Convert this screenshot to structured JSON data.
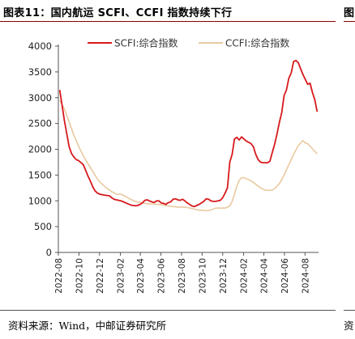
{
  "figure": {
    "title": "图表11：国内航运 SCFI、CCFI 指数持续下行",
    "adjacent_title_fragment": "图",
    "source": "资料来源：Wind，中邮证券研究所",
    "adjacent_source_fragment": "资"
  },
  "colors": {
    "scfi": "#d7191c",
    "ccfi": "#e9c9a0",
    "rule": "#8a0000",
    "axis": "#555555"
  },
  "chart_data": {
    "type": "line",
    "legend_position": "top",
    "grid": false,
    "ylim": [
      0,
      4000
    ],
    "y_ticks": [
      "0",
      "500",
      "1000",
      "1500",
      "2000",
      "2500",
      "3000",
      "3500",
      "4000"
    ],
    "x_ticks": [
      "2022-08",
      "2022-10",
      "2022-12",
      "2023-02",
      "2023-04",
      "2023-06",
      "2023-08",
      "2023-10",
      "2023-12",
      "2024-02",
      "2024-04",
      "2024-06",
      "2024-08"
    ],
    "series": [
      {
        "name": "SCFI:综合指数",
        "color": "#d7191c",
        "points": [
          [
            "2022-08-05",
            3150
          ],
          [
            "2022-08-12",
            2850
          ],
          [
            "2022-08-19",
            2550
          ],
          [
            "2022-08-26",
            2300
          ],
          [
            "2022-09-02",
            2050
          ],
          [
            "2022-09-09",
            1920
          ],
          [
            "2022-09-16",
            1850
          ],
          [
            "2022-09-23",
            1800
          ],
          [
            "2022-09-30",
            1780
          ],
          [
            "2022-10-14",
            1700
          ],
          [
            "2022-10-21",
            1590
          ],
          [
            "2022-10-28",
            1480
          ],
          [
            "2022-11-04",
            1380
          ],
          [
            "2022-11-11",
            1270
          ],
          [
            "2022-11-18",
            1190
          ],
          [
            "2022-11-25",
            1150
          ],
          [
            "2022-12-02",
            1130
          ],
          [
            "2022-12-09",
            1120
          ],
          [
            "2022-12-16",
            1110
          ],
          [
            "2022-12-23",
            1105
          ],
          [
            "2022-12-30",
            1100
          ],
          [
            "2023-01-06",
            1060
          ],
          [
            "2023-01-13",
            1030
          ],
          [
            "2023-01-20",
            1020
          ],
          [
            "2023-02-03",
            1000
          ],
          [
            "2023-02-10",
            980
          ],
          [
            "2023-02-17",
            960
          ],
          [
            "2023-02-24",
            940
          ],
          [
            "2023-03-03",
            920
          ],
          [
            "2023-03-10",
            910
          ],
          [
            "2023-03-17",
            905
          ],
          [
            "2023-03-24",
            910
          ],
          [
            "2023-03-31",
            930
          ],
          [
            "2023-04-07",
            960
          ],
          [
            "2023-04-14",
            1010
          ],
          [
            "2023-04-21",
            1020
          ],
          [
            "2023-04-28",
            1000
          ],
          [
            "2023-05-05",
            980
          ],
          [
            "2023-05-12",
            970
          ],
          [
            "2023-05-19",
            1000
          ],
          [
            "2023-05-26",
            1000
          ],
          [
            "2023-06-02",
            960
          ],
          [
            "2023-06-09",
            950
          ],
          [
            "2023-06-16",
            930
          ],
          [
            "2023-06-21",
            960
          ],
          [
            "2023-06-30",
            980
          ],
          [
            "2023-07-07",
            1030
          ],
          [
            "2023-07-14",
            1040
          ],
          [
            "2023-07-21",
            1020
          ],
          [
            "2023-07-28",
            1010
          ],
          [
            "2023-08-04",
            1030
          ],
          [
            "2023-08-11",
            1000
          ],
          [
            "2023-08-18",
            960
          ],
          [
            "2023-08-25",
            930
          ],
          [
            "2023-09-01",
            900
          ],
          [
            "2023-09-08",
            890
          ],
          [
            "2023-09-15",
            910
          ],
          [
            "2023-09-22",
            930
          ],
          [
            "2023-10-06",
            990
          ],
          [
            "2023-10-13",
            1040
          ],
          [
            "2023-10-20",
            1030
          ],
          [
            "2023-10-27",
            1000
          ],
          [
            "2023-11-03",
            990
          ],
          [
            "2023-11-10",
            990
          ],
          [
            "2023-11-17",
            1000
          ],
          [
            "2023-11-24",
            1010
          ],
          [
            "2023-12-01",
            1060
          ],
          [
            "2023-12-08",
            1150
          ],
          [
            "2023-12-15",
            1250
          ],
          [
            "2023-12-22",
            1750
          ],
          [
            "2023-12-29",
            1900
          ],
          [
            "2024-01-05",
            2200
          ],
          [
            "2024-01-12",
            2230
          ],
          [
            "2024-01-19",
            2180
          ],
          [
            "2024-01-26",
            2240
          ],
          [
            "2024-02-02",
            2200
          ],
          [
            "2024-02-09",
            2160
          ],
          [
            "2024-02-23",
            2110
          ],
          [
            "2024-03-01",
            2050
          ],
          [
            "2024-03-08",
            1900
          ],
          [
            "2024-03-15",
            1800
          ],
          [
            "2024-03-22",
            1750
          ],
          [
            "2024-03-29",
            1740
          ],
          [
            "2024-04-12",
            1740
          ],
          [
            "2024-04-19",
            1770
          ],
          [
            "2024-04-26",
            1940
          ],
          [
            "2024-05-03",
            2100
          ],
          [
            "2024-05-10",
            2300
          ],
          [
            "2024-05-17",
            2520
          ],
          [
            "2024-05-24",
            2710
          ],
          [
            "2024-05-31",
            3040
          ],
          [
            "2024-06-07",
            3150
          ],
          [
            "2024-06-14",
            3380
          ],
          [
            "2024-06-21",
            3480
          ],
          [
            "2024-06-28",
            3700
          ],
          [
            "2024-07-05",
            3720
          ],
          [
            "2024-07-12",
            3680
          ],
          [
            "2024-07-19",
            3560
          ],
          [
            "2024-07-26",
            3450
          ],
          [
            "2024-08-02",
            3350
          ],
          [
            "2024-08-09",
            3260
          ],
          [
            "2024-08-16",
            3280
          ],
          [
            "2024-08-23",
            3100
          ],
          [
            "2024-08-30",
            2960
          ],
          [
            "2024-09-06",
            2730
          ]
        ]
      },
      {
        "name": "CCFI:综合指数",
        "color": "#e9c9a0",
        "points": [
          [
            "2022-08-05",
            2950
          ],
          [
            "2022-08-19",
            2780
          ],
          [
            "2022-09-02",
            2530
          ],
          [
            "2022-09-16",
            2270
          ],
          [
            "2022-09-30",
            2060
          ],
          [
            "2022-10-14",
            1870
          ],
          [
            "2022-10-28",
            1720
          ],
          [
            "2022-11-11",
            1570
          ],
          [
            "2022-11-25",
            1420
          ],
          [
            "2022-12-09",
            1320
          ],
          [
            "2022-12-23",
            1240
          ],
          [
            "2023-01-06",
            1180
          ],
          [
            "2023-01-20",
            1130
          ],
          [
            "2023-02-03",
            1130
          ],
          [
            "2023-02-17",
            1080
          ],
          [
            "2023-03-03",
            1030
          ],
          [
            "2023-03-17",
            990
          ],
          [
            "2023-03-31",
            970
          ],
          [
            "2023-04-14",
            950
          ],
          [
            "2023-04-28",
            940
          ],
          [
            "2023-05-12",
            940
          ],
          [
            "2023-05-26",
            930
          ],
          [
            "2023-06-09",
            920
          ],
          [
            "2023-06-21",
            900
          ],
          [
            "2023-07-07",
            890
          ],
          [
            "2023-07-21",
            880
          ],
          [
            "2023-08-04",
            880
          ],
          [
            "2023-08-18",
            870
          ],
          [
            "2023-09-01",
            850
          ],
          [
            "2023-09-15",
            830
          ],
          [
            "2023-09-22",
            820
          ],
          [
            "2023-10-13",
            810
          ],
          [
            "2023-10-27",
            820
          ],
          [
            "2023-11-10",
            860
          ],
          [
            "2023-11-24",
            860
          ],
          [
            "2023-12-08",
            860
          ],
          [
            "2023-12-22",
            900
          ],
          [
            "2023-12-29",
            990
          ],
          [
            "2024-01-05",
            1130
          ],
          [
            "2024-01-12",
            1290
          ],
          [
            "2024-01-19",
            1400
          ],
          [
            "2024-01-26",
            1450
          ],
          [
            "2024-02-02",
            1450
          ],
          [
            "2024-02-09",
            1430
          ],
          [
            "2024-02-23",
            1390
          ],
          [
            "2024-03-08",
            1320
          ],
          [
            "2024-03-22",
            1250
          ],
          [
            "2024-04-05",
            1210
          ],
          [
            "2024-04-19",
            1200
          ],
          [
            "2024-04-26",
            1210
          ],
          [
            "2024-05-03",
            1240
          ],
          [
            "2024-05-17",
            1330
          ],
          [
            "2024-05-31",
            1500
          ],
          [
            "2024-06-14",
            1700
          ],
          [
            "2024-06-28",
            1900
          ],
          [
            "2024-07-12",
            2070
          ],
          [
            "2024-07-26",
            2170
          ],
          [
            "2024-08-02",
            2120
          ],
          [
            "2024-08-09",
            2110
          ],
          [
            "2024-08-23",
            2010
          ],
          [
            "2024-09-06",
            1910
          ]
        ]
      }
    ]
  }
}
